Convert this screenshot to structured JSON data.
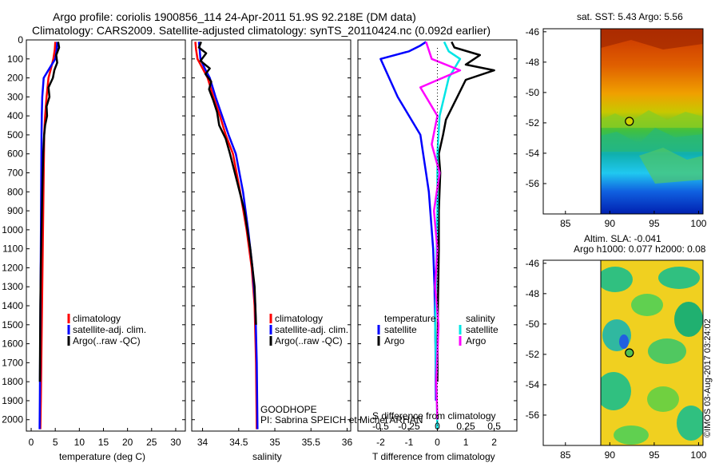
{
  "title": {
    "line1": "Argo profile: coriolis 1900856_114 24-Apr-2011 51.9S 92.218E (DM data)",
    "line2": "Climatology: CARS2009. Satellite-adjusted climatology: synTS_20110424.nc (0.092d earlier)"
  },
  "colors": {
    "climatology": "#ff0000",
    "satellite": "#0000ff",
    "argo": "#000000",
    "cyan": "#00e5e5",
    "magenta": "#ff00ff"
  },
  "depth_axis": {
    "ticks": [
      0,
      100,
      200,
      300,
      400,
      500,
      600,
      700,
      800,
      900,
      1000,
      1100,
      1200,
      1300,
      1400,
      1500,
      1600,
      1700,
      1800,
      1900,
      2000
    ],
    "ylim": [
      0,
      2060
    ]
  },
  "chart_data": [
    {
      "id": "temperature",
      "type": "line",
      "xlabel": "temperature (deg C)",
      "xlim": [
        -1,
        32
      ],
      "xticks": [
        0,
        5,
        10,
        15,
        20,
        25,
        30
      ],
      "legend": [
        "climatology",
        "satellite-adj. clim.",
        "Argo(..raw -QC)"
      ],
      "series": [
        {
          "name": "climatology",
          "color": "red",
          "x": [
            5.0,
            4.9,
            4.6,
            4.1,
            3.6,
            3.2,
            2.9,
            2.7,
            2.6,
            2.5,
            2.4,
            2.3,
            2.2,
            2.1,
            2.0,
            1.9
          ],
          "y": [
            10,
            50,
            100,
            150,
            200,
            300,
            400,
            500,
            700,
            900,
            1100,
            1300,
            1500,
            1700,
            1900,
            2050
          ]
        },
        {
          "name": "satellite-adj. clim.",
          "color": "blue",
          "x": [
            5.4,
            5.3,
            5.0,
            3.8,
            2.6,
            2.3,
            2.2,
            2.15,
            2.1,
            2.05,
            2.0,
            1.95,
            1.9,
            1.85,
            1.8,
            1.75
          ],
          "y": [
            10,
            50,
            100,
            150,
            200,
            300,
            400,
            500,
            700,
            900,
            1100,
            1300,
            1500,
            1700,
            1900,
            2050
          ]
        },
        {
          "name": "Argo(..raw -QC)",
          "color": "black",
          "x": [
            5.6,
            5.8,
            5.2,
            5.4,
            4.8,
            4.5,
            3.6,
            3.8,
            3.2,
            3.3,
            2.9,
            2.7,
            2.5,
            2.4,
            2.3,
            2.15,
            2.0,
            1.9,
            1.85,
            1.8
          ],
          "y": [
            10,
            40,
            80,
            120,
            160,
            200,
            250,
            300,
            350,
            400,
            450,
            500,
            600,
            700,
            800,
            1000,
            1200,
            1400,
            1600,
            1800
          ]
        }
      ]
    },
    {
      "id": "salinity",
      "type": "line",
      "xlabel": "salinity",
      "xlim": [
        33.85,
        36.05
      ],
      "xticks": [
        34,
        34.5,
        35,
        35.5,
        36
      ],
      "legend": [
        "climatology",
        "satellite-adj. clim.",
        "Argo(..raw -QC)"
      ],
      "series": [
        {
          "name": "climatology",
          "color": "red",
          "x": [
            33.9,
            33.91,
            33.93,
            34.0,
            34.07,
            34.15,
            34.24,
            34.32,
            34.42,
            34.52,
            34.61,
            34.68,
            34.72,
            34.74,
            34.75
          ],
          "y": [
            10,
            50,
            100,
            150,
            200,
            300,
            400,
            500,
            600,
            800,
            1000,
            1200,
            1400,
            1700,
            2050
          ]
        },
        {
          "name": "satellite-adj. clim.",
          "color": "blue",
          "x": [
            33.95,
            33.96,
            33.97,
            34.03,
            34.1,
            34.18,
            34.27,
            34.36,
            34.46,
            34.56,
            34.63,
            34.69,
            34.73,
            34.75,
            34.76
          ],
          "y": [
            10,
            50,
            100,
            150,
            200,
            300,
            400,
            500,
            600,
            800,
            1000,
            1200,
            1400,
            1700,
            2050
          ]
        },
        {
          "name": "Argo(..raw -QC)",
          "color": "black",
          "x": [
            33.98,
            33.95,
            34.05,
            33.97,
            34.1,
            34.04,
            34.12,
            34.09,
            34.15,
            34.2,
            34.23,
            34.32,
            34.38,
            34.48,
            34.58,
            34.66,
            34.72,
            34.74
          ],
          "y": [
            10,
            40,
            70,
            110,
            150,
            180,
            220,
            260,
            320,
            380,
            450,
            520,
            600,
            750,
            900,
            1100,
            1300,
            1500
          ]
        }
      ],
      "annotation": [
        "GOODHOPE",
        "PI: Sabrina SPEICH et Michel ARHAN"
      ]
    },
    {
      "id": "differences",
      "type": "line",
      "xlabel": "T difference from climatology",
      "xlim": [
        -2.8,
        2.8
      ],
      "xticks": [
        -2,
        -1,
        0,
        1,
        2
      ],
      "xlabel_top": "S difference from climatology",
      "xticks_top": [
        -0.5,
        -0.25,
        0,
        0.25,
        0.5
      ],
      "xticks_top_labels": [
        "-0.5",
        "-0.25",
        "0",
        "0.25",
        "0.5"
      ],
      "legend_headers": [
        "temperature",
        "salinity"
      ],
      "legend": [
        "satellite",
        "Argo",
        "satellite",
        "Argo"
      ],
      "series": [
        {
          "name": "temperature satellite",
          "color": "blue",
          "x": [
            -0.4,
            -0.6,
            -1.0,
            -2.0,
            -1.7,
            -1.4,
            -1.0,
            -0.6,
            -0.5,
            -0.4,
            -0.3,
            -0.25,
            -0.2,
            -0.15,
            -0.1,
            -0.08,
            -0.06,
            -0.05
          ],
          "y": [
            10,
            30,
            60,
            100,
            200,
            300,
            400,
            500,
            600,
            700,
            800,
            900,
            1000,
            1100,
            1300,
            1500,
            1700,
            1900
          ]
        },
        {
          "name": "temperature Argo",
          "color": "black",
          "x": [
            0.5,
            0.6,
            1.5,
            1.0,
            2.0,
            1.0,
            0.7,
            0.3,
            0.2,
            0.05,
            0.1,
            0.05,
            0.05,
            0.02,
            0.0
          ],
          "y": [
            10,
            40,
            80,
            130,
            160,
            210,
            300,
            420,
            500,
            600,
            700,
            900,
            1100,
            1400,
            1800
          ]
        },
        {
          "name": "salinity satellite",
          "color": "cyan",
          "x": [
            0.06,
            0.1,
            0.2,
            0.1,
            0.02,
            0.0,
            0.0,
            -0.02,
            0.0
          ],
          "y": [
            10,
            60,
            100,
            200,
            400,
            600,
            900,
            1500,
            2050
          ]
        },
        {
          "name": "salinity Argo",
          "color": "magenta",
          "x": [
            -0.1,
            -0.05,
            0.2,
            -0.15,
            0.0,
            -0.05,
            0.02,
            -0.03,
            0.0,
            -0.02,
            0.01,
            -0.01,
            0.0
          ],
          "y": [
            10,
            100,
            160,
            250,
            400,
            550,
            700,
            900,
            1100,
            1300,
            1500,
            1800,
            2000
          ]
        }
      ]
    }
  ],
  "sst_map": {
    "title": "sat. SST: 5.43 Argo: 5.56",
    "yticks": [
      "-46",
      "-48",
      "-50",
      "-52",
      "-54",
      "-56"
    ],
    "xticks": [
      "85",
      "90",
      "95",
      "100"
    ],
    "marker": {
      "lon": 92.2,
      "lat": -51.9
    }
  },
  "sla_map": {
    "title1": "Altim. SLA: -0.041",
    "title2": "Argo h1000: 0.077 h2000: 0.08",
    "yticks": [
      "-46",
      "-48",
      "-50",
      "-52",
      "-54",
      "-56"
    ],
    "xticks": [
      "85",
      "90",
      "95",
      "100"
    ],
    "marker": {
      "lon": 92.2,
      "lat": -51.9
    }
  },
  "credit": "©IMOS 03-Aug-2017 03:24:02"
}
